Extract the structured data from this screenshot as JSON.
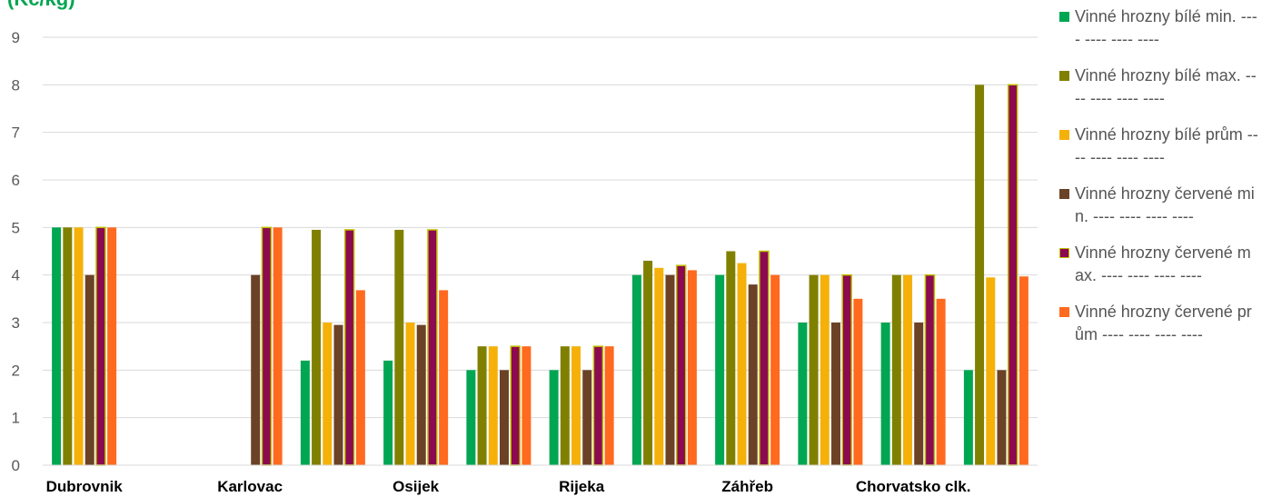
{
  "chart_data": {
    "type": "bar",
    "title": "(Kč/kg)",
    "categories": [
      "Dubrovnik",
      "",
      "Karlovac",
      "",
      "Osijek",
      "",
      "Rijeka",
      "",
      "Záhřeb",
      "",
      "Chorvatsko clk.",
      ""
    ],
    "ylim": [
      0,
      9
    ],
    "yticks": [
      "0",
      "1",
      "2",
      "3",
      "4",
      "5",
      "6",
      "7",
      "8",
      "9"
    ],
    "grid": true,
    "legend_position": "right",
    "series": [
      {
        "name": "Vinné hrozny bílé min. ---- ---- ---- ----",
        "color": "#00a651",
        "outline": "",
        "values": [
          5,
          null,
          null,
          2.2,
          2.2,
          2,
          2,
          4,
          4,
          3,
          3,
          2
        ]
      },
      {
        "name": "Vinné hrozny bílé max. ---- ---- ---- ----",
        "color": "#808000",
        "outline": "",
        "values": [
          5,
          null,
          null,
          4.95,
          4.95,
          2.5,
          2.5,
          4.3,
          4.5,
          4,
          4,
          8
        ]
      },
      {
        "name": "Vinné hrozny bílé prům ---- ---- ---- ----",
        "color": "#f5b10a",
        "outline": "",
        "values": [
          5,
          null,
          null,
          3,
          3,
          2.5,
          2.5,
          4.15,
          4.25,
          4,
          4,
          3.95
        ]
      },
      {
        "name": "Vinné hrozny červené min. ---- ---- ---- ----",
        "color": "#6b4226",
        "outline": "",
        "values": [
          4,
          null,
          4,
          2.95,
          2.95,
          2,
          2,
          4,
          3.8,
          3,
          3,
          2
        ]
      },
      {
        "name": "Vinné hrozny červené max. ---- ---- ---- ----",
        "color": "#8b0a50",
        "outline": "#bfbf00",
        "values": [
          5,
          null,
          5,
          4.95,
          4.95,
          2.5,
          2.5,
          4.2,
          4.5,
          4,
          4,
          8
        ]
      },
      {
        "name": "Vinné hrozny červené prům ---- ---- ---- ----",
        "color": "#ff6a1f",
        "outline": "",
        "values": [
          5,
          null,
          5,
          3.68,
          3.68,
          2.5,
          2.5,
          4.1,
          4,
          3.5,
          3.5,
          3.97
        ]
      }
    ]
  }
}
